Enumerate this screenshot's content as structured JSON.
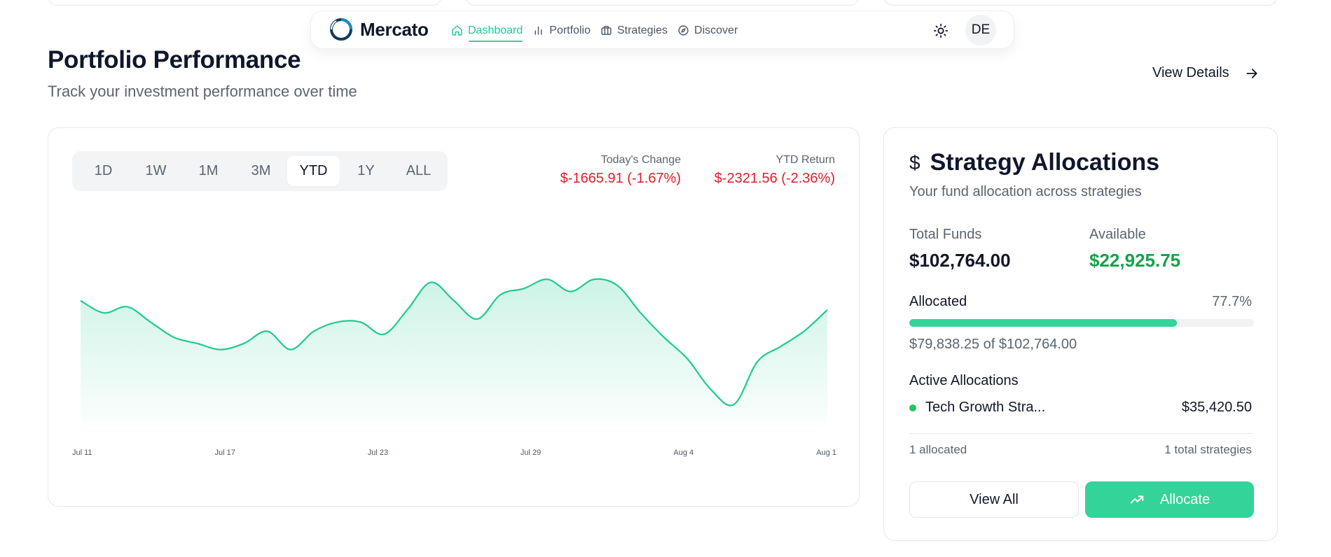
{
  "brand": {
    "name": "Mercato"
  },
  "nav": {
    "links": [
      {
        "label": "Dashboard",
        "icon": "home-icon",
        "active": true
      },
      {
        "label": "Portfolio",
        "icon": "bar-chart-icon",
        "active": false
      },
      {
        "label": "Strategies",
        "icon": "briefcase-icon",
        "active": false
      },
      {
        "label": "Discover",
        "icon": "compass-icon",
        "active": false
      }
    ],
    "theme_icon": "sun-icon",
    "avatar_initials": "DE"
  },
  "header": {
    "title": "Portfolio Performance",
    "subtitle": "Track your investment performance over time",
    "view_details": "View Details"
  },
  "performance": {
    "ranges": [
      "1D",
      "1W",
      "1M",
      "3M",
      "YTD",
      "1Y",
      "ALL"
    ],
    "selected_range": "YTD",
    "todays_change_label": "Today's Change",
    "todays_change_value": "$-1665.91 (-1.67%)",
    "ytd_return_label": "YTD Return",
    "ytd_return_value": "$-2321.56 (-2.36%)",
    "line_color": "#1ecb8f",
    "negative_color": "#e11d2a"
  },
  "chart_data": {
    "type": "area",
    "title": "",
    "xlabel": "",
    "ylabel": "",
    "x_tick_labels": [
      "Jul 11",
      "Jul 17",
      "Jul 23",
      "Jul 29",
      "Aug 4",
      "Aug 1"
    ],
    "grid": false,
    "series": [
      {
        "values": [
          82,
          78,
          80,
          75,
          70,
          68,
          66,
          68,
          72,
          66,
          72,
          75,
          75,
          71,
          79,
          88,
          82,
          76,
          84,
          86,
          89,
          85,
          89,
          87,
          78,
          70,
          63,
          53,
          48,
          62,
          67,
          72,
          79
        ]
      }
    ],
    "ylim": [
      40,
      95
    ]
  },
  "allocations": {
    "title": "Strategy Allocations",
    "title_icon": "dollar-icon",
    "subtitle": "Your fund allocation across strategies",
    "total_funds_label": "Total Funds",
    "total_funds_value": "$102,764.00",
    "available_label": "Available",
    "available_value": "$22,925.75",
    "allocated_label": "Allocated",
    "allocated_percent_text": "77.7%",
    "allocated_fraction": 0.777,
    "allocated_amount_text": "$79,838.25 of $102,764.00",
    "active_title": "Active Allocations",
    "items": [
      {
        "name": "Tech Growth Stra...",
        "amount": "$35,420.50",
        "status_color": "#22c55e"
      }
    ],
    "allocated_count": "1 allocated",
    "total_strategies": "1 total strategies",
    "view_all_label": "View All",
    "allocate_label": "Allocate",
    "allocate_icon": "trending-up-icon"
  }
}
